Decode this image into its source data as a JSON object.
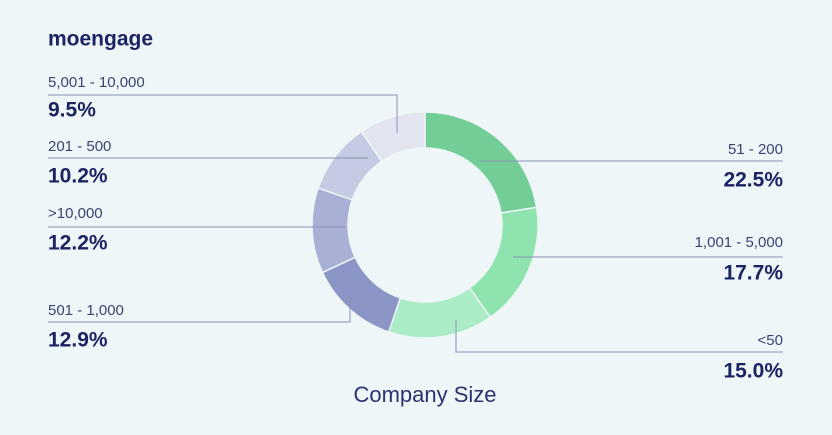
{
  "brand": "moengage",
  "chart_data": {
    "type": "pie",
    "title": "Company Size",
    "categories": [
      "51 - 200",
      "1,001 - 5,000",
      "<50",
      "501 - 1,000",
      ">10,000",
      "201 - 500",
      "5,001 - 10,000"
    ],
    "values": [
      22.5,
      17.7,
      15.0,
      12.9,
      12.2,
      10.2,
      9.5
    ],
    "value_labels": [
      "22.5%",
      "17.7%",
      "15.0%",
      "12.9%",
      "12.2%",
      "10.2%",
      "9.5%"
    ],
    "colors": [
      "#72cd96",
      "#8fe3ae",
      "#abecc6",
      "#8b95c6",
      "#a8b0d5",
      "#c5cbe2",
      "#e2e5ef"
    ],
    "donut": true
  }
}
